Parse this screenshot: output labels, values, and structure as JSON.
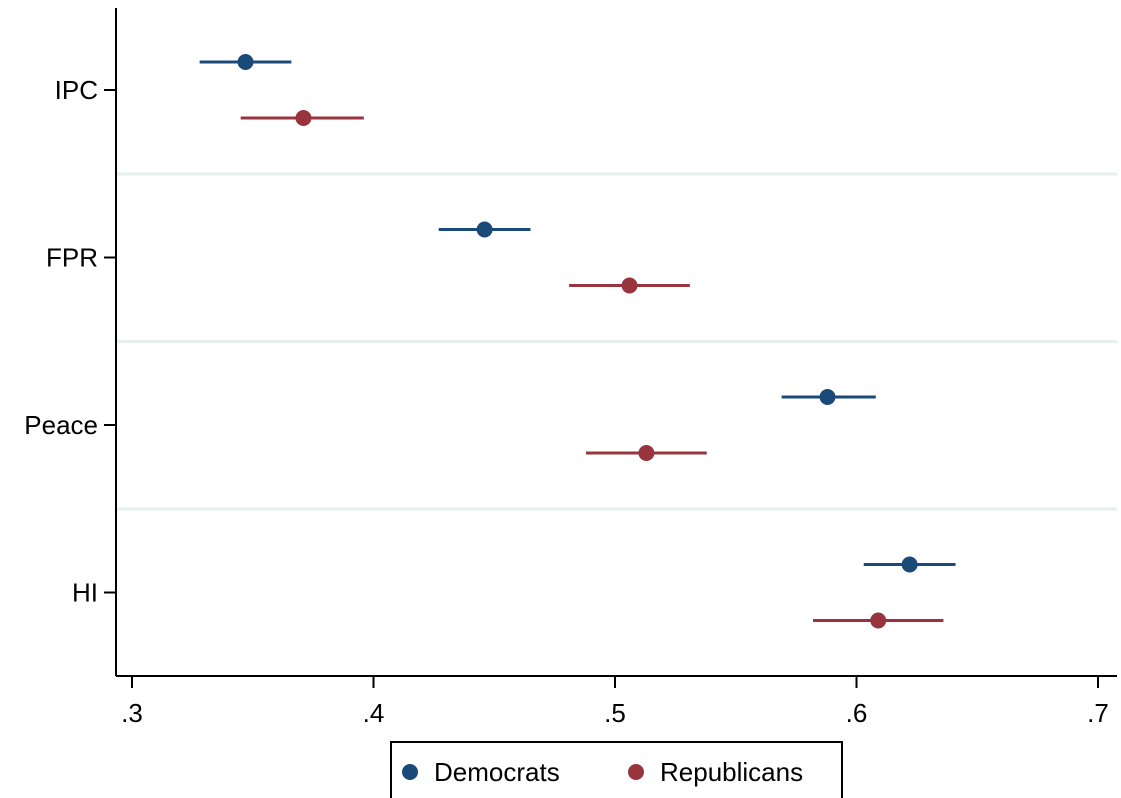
{
  "chart_data": {
    "type": "scatter",
    "subtype": "dot plot with error bars",
    "categories": [
      "IPC",
      "FPR",
      "Peace",
      "HI"
    ],
    "series": [
      {
        "name": "Democrats",
        "color": "#1a4a78",
        "values": [
          0.347,
          0.446,
          0.588,
          0.622
        ],
        "ci_low": [
          0.328,
          0.427,
          0.569,
          0.603
        ],
        "ci_high": [
          0.366,
          0.465,
          0.608,
          0.641
        ]
      },
      {
        "name": "Republicans",
        "color": "#98343d",
        "values": [
          0.371,
          0.506,
          0.513,
          0.609
        ],
        "ci_low": [
          0.345,
          0.481,
          0.488,
          0.582
        ],
        "ci_high": [
          0.396,
          0.531,
          0.538,
          0.636
        ]
      }
    ],
    "xticks": [
      ".3",
      ".4",
      ".5",
      ".6",
      ".7"
    ],
    "xtick_values": [
      0.3,
      0.4,
      0.5,
      0.6,
      0.7
    ],
    "xlim": [
      0.295,
      0.708
    ],
    "xlabel": "",
    "ylabel": "",
    "title": "",
    "grid": "horizontal separators between categories",
    "legend": {
      "position": "bottom-center",
      "entries": [
        "Democrats",
        "Republicans"
      ]
    }
  }
}
